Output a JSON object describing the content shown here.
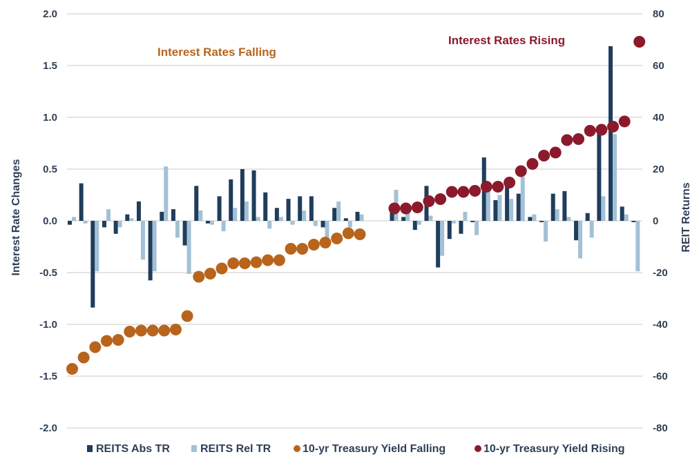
{
  "chart_data": {
    "type": "bar",
    "grid": true,
    "legend_position": "bottom",
    "y_left": {
      "label": "Interest Rate Changes",
      "range": [
        -2.0,
        2.0
      ],
      "ticks": [
        "2.0",
        "1.5",
        "1.0",
        "0.5",
        "0.0",
        "-0.5",
        "-1.0",
        "-1.5",
        "-2.0"
      ]
    },
    "y_right": {
      "label": "REIT Returns",
      "range": [
        -80,
        80
      ],
      "ticks": [
        "80",
        "60",
        "40",
        "20",
        "0",
        "-20",
        "-40",
        "-60",
        "-80"
      ]
    },
    "annotations": {
      "falling": "Interest Rates Falling",
      "rising": "Interest Rates Rising"
    },
    "series": [
      {
        "name": "REITS Abs TR",
        "kind": "bar",
        "axis": "right",
        "color": "#1f3d5c",
        "values": [
          -1.5,
          14.5,
          -33.5,
          -2.5,
          -5,
          2.5,
          7.5,
          -23,
          3.5,
          4.5,
          -9.5,
          13.5,
          -1,
          9.5,
          16,
          20,
          19.5,
          11,
          5,
          8.5,
          9.5,
          9.5,
          -2.5,
          5,
          1,
          3.5,
          null,
          null,
          4,
          1.5,
          -3.5,
          13.5,
          -18,
          -7,
          -5,
          -0.5,
          24.5,
          8,
          14,
          10.5,
          1.5,
          -0.5,
          10.5,
          11.5,
          -7.5,
          3,
          35.5,
          67.5,
          5.5,
          -0.5
        ]
      },
      {
        "name": "REITS Rel TR",
        "kind": "bar",
        "axis": "right",
        "color": "#a3c1d6",
        "values": [
          1.5,
          -1,
          -19.5,
          4.5,
          -2.5,
          1,
          -15,
          -19.5,
          21,
          -6.5,
          -20.5,
          4,
          -1.5,
          -4,
          5,
          7.5,
          1.5,
          -3,
          1.5,
          -1.5,
          4,
          -2,
          -9,
          7.5,
          -2.5,
          2.5,
          null,
          null,
          12,
          3.5,
          -1.5,
          2,
          -13.5,
          -1,
          3.5,
          -5.5,
          12,
          10,
          8.5,
          17,
          2.5,
          -8,
          4.5,
          1.5,
          -14.5,
          -6.5,
          9.5,
          33.5,
          2.5,
          -19.5
        ]
      },
      {
        "name": "10-yr Treasury Yield Falling",
        "kind": "dot",
        "axis": "left",
        "color": "#b8641c",
        "values": [
          -1.43,
          -1.32,
          -1.22,
          -1.16,
          -1.15,
          -1.07,
          -1.06,
          -1.06,
          -1.06,
          -1.05,
          -0.92,
          -0.54,
          -0.51,
          -0.46,
          -0.41,
          -0.41,
          -0.4,
          -0.38,
          -0.38,
          -0.27,
          -0.27,
          -0.23,
          -0.21,
          -0.17,
          -0.12,
          -0.13
        ]
      },
      {
        "name": "10-yr Treasury Yield Rising",
        "kind": "dot",
        "axis": "left",
        "color": "#8b1a2c",
        "values": [
          0.12,
          0.12,
          0.13,
          0.19,
          0.21,
          0.28,
          0.28,
          0.29,
          0.33,
          0.33,
          0.37,
          0.48,
          0.55,
          0.63,
          0.66,
          0.78,
          0.79,
          0.87,
          0.88,
          0.91,
          0.96,
          1.73
        ]
      }
    ]
  }
}
